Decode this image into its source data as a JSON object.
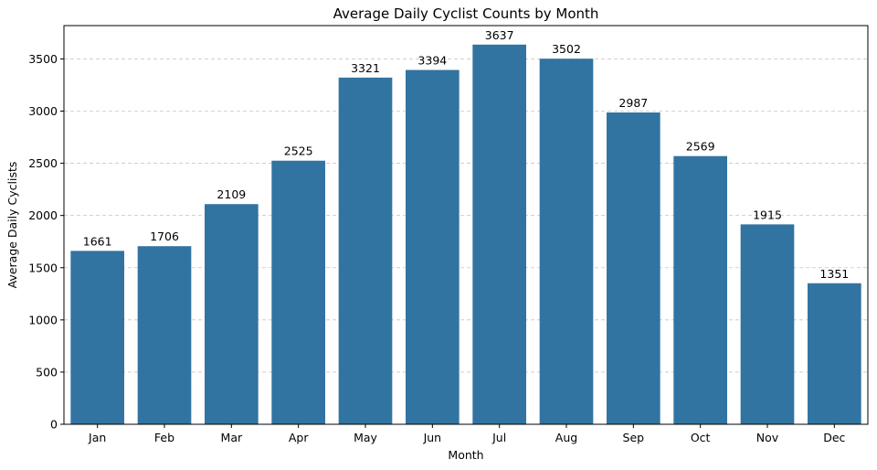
{
  "chart_data": {
    "type": "bar",
    "title": "Average Daily Cyclist Counts by Month",
    "xlabel": "Month",
    "ylabel": "Average Daily Cyclists",
    "categories": [
      "Jan",
      "Feb",
      "Mar",
      "Apr",
      "May",
      "Jun",
      "Jul",
      "Aug",
      "Sep",
      "Oct",
      "Nov",
      "Dec"
    ],
    "values": [
      1661,
      1706,
      2109,
      2525,
      3321,
      3394,
      3637,
      3502,
      2987,
      2569,
      1915,
      1351
    ],
    "ylim": [
      0,
      3819
    ],
    "yticks": [
      0,
      500,
      1000,
      1500,
      2000,
      2500,
      3000,
      3500
    ],
    "grid": "y-dashed",
    "bar_color": "#3274a1"
  }
}
